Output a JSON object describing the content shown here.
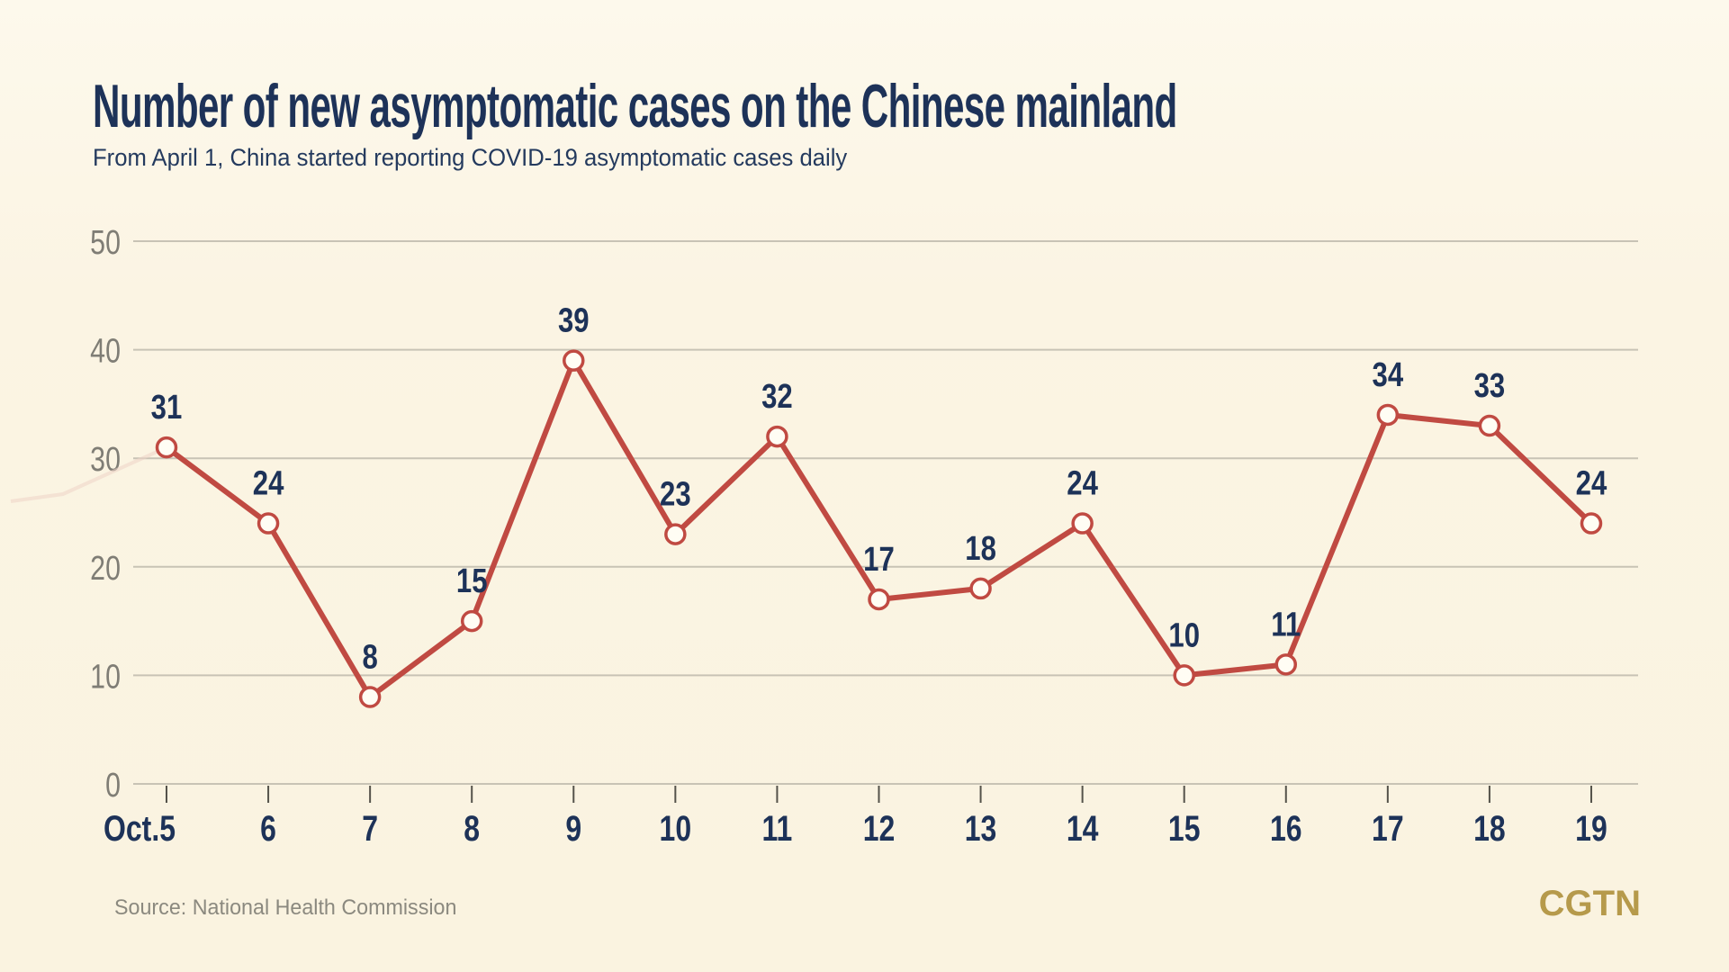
{
  "page": {
    "background_color": "#faf3e0",
    "accent_red": "#c04a42",
    "navy": "#1d3258",
    "axis_gray": "#7f7d75",
    "grid_gray": "#c8c3b5",
    "tick_gray": "#54524a",
    "gold": "#b69a4b",
    "marker_fill": "#fffdf4"
  },
  "header": {
    "title": "Number of new asymptomatic cases on the Chinese mainland",
    "subtitle": "From April 1, China started reporting COVID-19 asymptomatic cases daily"
  },
  "footer": {
    "source": "Source: National Health Commission",
    "logo": "CGTN"
  },
  "chart_data": {
    "type": "line",
    "title": "Number of new asymptomatic cases on the Chinese mainland",
    "subtitle": "From April 1, China started reporting COVID-19 asymptomatic cases daily",
    "categories": [
      "Oct.5",
      "6",
      "7",
      "8",
      "9",
      "10",
      "11",
      "12",
      "13",
      "14",
      "15",
      "16",
      "17",
      "18",
      "19"
    ],
    "values": [
      31,
      24,
      8,
      15,
      39,
      23,
      32,
      17,
      18,
      24,
      10,
      11,
      34,
      33,
      24
    ],
    "xlabel": "",
    "ylabel": "",
    "ylim": [
      0,
      50
    ],
    "yticks": [
      0,
      10,
      20,
      30,
      40,
      50
    ],
    "grid": true,
    "legend": false,
    "data_labels": true,
    "line_color": "#c04a42",
    "label_color": "#1d3258",
    "source": "Source: National Health Commission"
  }
}
